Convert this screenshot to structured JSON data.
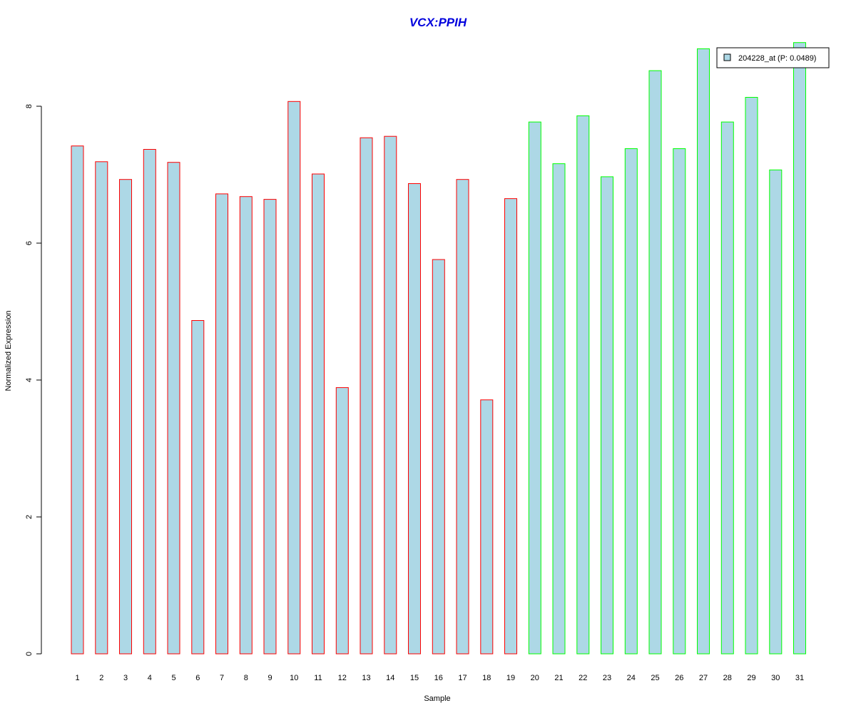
{
  "colors": {
    "title": "#0000dd",
    "bar_fill": "#add8e6",
    "group1_border": "#ff0000",
    "group2_border": "#00ff00",
    "axis": "#000000"
  },
  "chart_data": {
    "type": "bar",
    "title": "VCX:PPIH",
    "xlabel": "Sample",
    "ylabel": "Normalized Expression",
    "ylim": [
      0,
      9
    ],
    "yticks": [
      "0",
      "2",
      "4",
      "6",
      "8"
    ],
    "grid": false,
    "legend_position": "top-right",
    "categories": [
      "1",
      "2",
      "3",
      "4",
      "5",
      "6",
      "7",
      "8",
      "9",
      "10",
      "11",
      "12",
      "13",
      "14",
      "15",
      "16",
      "17",
      "18",
      "19",
      "20",
      "21",
      "22",
      "23",
      "24",
      "25",
      "26",
      "27",
      "28",
      "29",
      "30",
      "31"
    ],
    "series": [
      {
        "name": "204228_at (P: 0.0489)",
        "values": [
          7.42,
          7.19,
          6.93,
          7.37,
          7.18,
          4.87,
          6.72,
          6.68,
          6.64,
          8.07,
          7.01,
          3.89,
          7.54,
          7.56,
          6.87,
          5.76,
          6.93,
          3.71,
          6.65,
          7.77,
          7.16,
          7.86,
          6.97,
          7.38,
          8.52,
          7.38,
          8.84,
          7.77,
          8.13,
          7.07,
          8.93
        ],
        "groups": [
          1,
          1,
          1,
          1,
          1,
          1,
          1,
          1,
          1,
          1,
          1,
          1,
          1,
          1,
          1,
          1,
          1,
          1,
          1,
          2,
          2,
          2,
          2,
          2,
          2,
          2,
          2,
          2,
          2,
          2,
          2
        ]
      }
    ]
  }
}
